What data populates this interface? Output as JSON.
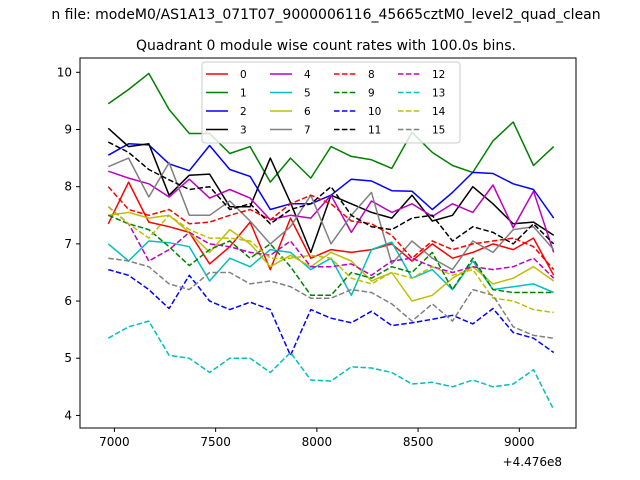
{
  "chart_data": {
    "type": "line",
    "suptitle": "n file: modeM0/AS1A13_071T07_9000006116_45665cztM0_level2_quad_clean",
    "title": "Quadrant 0 module wise count rates with 100.0s bins.",
    "xlabel": "",
    "ylabel": "",
    "x_offset_label": "+4.476e8",
    "xlim": [
      6830,
      9280
    ],
    "ylim": [
      3.78,
      10.25
    ],
    "xticks": [
      7000,
      7500,
      8000,
      8500,
      9000
    ],
    "yticks": [
      4,
      5,
      6,
      7,
      8,
      9,
      10
    ],
    "grid": false,
    "legend_position": "top-center",
    "x": [
      6970,
      7070,
      7170,
      7270,
      7370,
      7470,
      7570,
      7670,
      7770,
      7870,
      7970,
      8070,
      8170,
      8270,
      8370,
      8470,
      8570,
      8670,
      8770,
      8870,
      8970,
      9070,
      9170
    ],
    "series": [
      {
        "name": "0",
        "color": "#ff0000",
        "dash": "solid",
        "values": [
          7.35,
          8.08,
          7.38,
          7.3,
          7.2,
          6.65,
          6.95,
          7.38,
          6.55,
          7.45,
          6.75,
          6.9,
          6.85,
          6.9,
          7.0,
          6.7,
          7.0,
          6.75,
          6.85,
          7.0,
          6.9,
          7.1,
          6.45
        ]
      },
      {
        "name": "1",
        "color": "#008000",
        "dash": "solid",
        "values": [
          9.45,
          9.7,
          9.98,
          9.35,
          8.93,
          8.93,
          8.58,
          8.7,
          8.08,
          8.5,
          8.15,
          8.7,
          8.53,
          8.47,
          8.32,
          8.95,
          8.6,
          8.37,
          8.25,
          8.8,
          9.13,
          8.37,
          8.7
        ]
      },
      {
        "name": "2",
        "color": "#0000ff",
        "dash": "solid",
        "values": [
          8.55,
          8.75,
          8.73,
          8.4,
          8.28,
          8.72,
          8.3,
          8.18,
          7.6,
          7.7,
          7.7,
          7.85,
          8.13,
          8.1,
          7.93,
          7.92,
          7.6,
          7.9,
          8.25,
          8.23,
          8.05,
          7.95,
          7.45
        ]
      },
      {
        "name": "3",
        "color": "#000000",
        "dash": "solid",
        "values": [
          9.02,
          8.7,
          8.75,
          7.85,
          8.2,
          8.22,
          7.65,
          7.65,
          8.5,
          7.72,
          6.85,
          7.85,
          7.7,
          7.55,
          7.45,
          7.85,
          7.4,
          7.5,
          8.0,
          7.7,
          7.35,
          7.38,
          7.15
        ]
      },
      {
        "name": "4",
        "color": "#bf00bf",
        "dash": "solid",
        "values": [
          8.27,
          8.15,
          8.05,
          7.82,
          8.13,
          7.8,
          7.95,
          7.8,
          7.42,
          7.5,
          7.45,
          7.85,
          7.2,
          7.75,
          7.55,
          7.7,
          7.48,
          7.7,
          7.55,
          8.03,
          7.28,
          7.92,
          6.85
        ]
      },
      {
        "name": "5",
        "color": "#00bfbf",
        "dash": "solid",
        "values": [
          7.0,
          6.7,
          7.05,
          7.02,
          6.95,
          6.35,
          6.75,
          6.6,
          6.9,
          6.85,
          6.55,
          6.75,
          6.1,
          6.9,
          7.03,
          6.4,
          6.55,
          6.2,
          6.7,
          6.2,
          6.25,
          6.3,
          6.15
        ]
      },
      {
        "name": "6",
        "color": "#bfbf00",
        "dash": "solid",
        "values": [
          7.5,
          7.55,
          7.45,
          7.5,
          7.2,
          6.85,
          7.25,
          7.0,
          6.6,
          6.8,
          6.6,
          6.85,
          6.7,
          6.35,
          6.5,
          6.0,
          6.1,
          6.4,
          6.6,
          6.3,
          6.4,
          6.6,
          6.35
        ]
      },
      {
        "name": "7",
        "color": "#808080",
        "dash": "solid",
        "values": [
          8.35,
          8.5,
          7.82,
          8.42,
          7.5,
          7.5,
          7.75,
          7.4,
          7.0,
          7.3,
          7.85,
          7.0,
          7.5,
          7.9,
          6.65,
          7.05,
          6.75,
          6.55,
          7.05,
          6.85,
          7.25,
          7.3,
          6.9
        ]
      },
      {
        "name": "8",
        "color": "#ff0000",
        "dash": "dashed",
        "values": [
          8.0,
          7.6,
          7.5,
          7.6,
          7.35,
          7.38,
          7.5,
          7.6,
          7.42,
          7.7,
          7.85,
          7.7,
          7.4,
          7.35,
          7.15,
          6.75,
          7.05,
          6.9,
          7.0,
          7.05,
          7.1,
          6.95,
          6.55
        ]
      },
      {
        "name": "9",
        "color": "#008000",
        "dash": "dashed",
        "values": [
          7.5,
          7.35,
          7.25,
          6.95,
          6.62,
          6.9,
          7.05,
          6.75,
          7.0,
          6.6,
          6.1,
          6.1,
          6.5,
          6.4,
          6.6,
          6.5,
          6.85,
          6.2,
          6.75,
          6.2,
          6.15,
          6.15,
          6.15
        ]
      },
      {
        "name": "10",
        "color": "#0000ff",
        "dash": "dashed",
        "values": [
          6.55,
          6.45,
          6.2,
          5.87,
          6.45,
          6.0,
          5.85,
          5.98,
          5.85,
          5.05,
          5.85,
          5.7,
          5.62,
          5.82,
          5.57,
          5.62,
          5.68,
          5.75,
          5.6,
          5.87,
          5.45,
          5.35,
          5.1
        ]
      },
      {
        "name": "11",
        "color": "#000000",
        "dash": "dashed",
        "values": [
          8.78,
          8.6,
          8.3,
          8.12,
          7.95,
          8.0,
          7.6,
          7.7,
          7.35,
          7.6,
          7.7,
          8.0,
          7.5,
          7.3,
          7.25,
          7.45,
          7.5,
          7.05,
          7.3,
          7.2,
          7.0,
          7.35,
          7.0
        ]
      },
      {
        "name": "12",
        "color": "#bf00bf",
        "dash": "dashed",
        "values": [
          7.65,
          7.35,
          6.7,
          6.9,
          7.2,
          7.0,
          6.95,
          6.85,
          6.8,
          7.05,
          6.6,
          6.6,
          6.65,
          6.45,
          6.7,
          6.75,
          6.6,
          6.5,
          6.6,
          6.55,
          6.6,
          6.75,
          6.4
        ]
      },
      {
        "name": "13",
        "color": "#00bfbf",
        "dash": "dashed",
        "values": [
          5.35,
          5.55,
          5.65,
          5.05,
          5.0,
          4.75,
          5.0,
          5.0,
          4.75,
          5.1,
          4.62,
          4.6,
          4.85,
          4.83,
          4.75,
          4.55,
          4.58,
          4.5,
          4.62,
          4.5,
          4.55,
          4.8,
          4.1
        ]
      },
      {
        "name": "14",
        "color": "#bfbf00",
        "dash": "dashed",
        "values": [
          7.65,
          7.35,
          7.1,
          7.5,
          7.25,
          7.1,
          7.1,
          7.05,
          6.75,
          6.75,
          6.8,
          6.75,
          6.4,
          6.3,
          6.5,
          6.4,
          6.6,
          6.45,
          6.55,
          6.05,
          6.0,
          5.85,
          5.8
        ]
      },
      {
        "name": "15",
        "color": "#808080",
        "dash": "dashed",
        "values": [
          6.75,
          6.7,
          6.6,
          6.3,
          6.2,
          6.5,
          6.5,
          6.3,
          6.35,
          6.25,
          6.05,
          6.05,
          6.2,
          6.15,
          5.95,
          5.65,
          5.95,
          5.65,
          6.2,
          6.1,
          5.55,
          5.4,
          5.35
        ]
      }
    ]
  }
}
